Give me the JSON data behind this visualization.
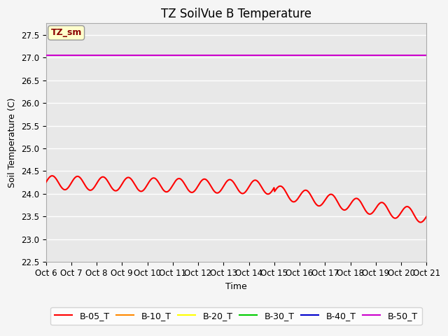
{
  "title": "TZ SoilVue B Temperature",
  "ylabel": "Soil Temperature (C)",
  "xlabel": "Time",
  "ylim": [
    22.5,
    27.75
  ],
  "yticks": [
    22.5,
    23.0,
    23.5,
    24.0,
    24.5,
    25.0,
    25.5,
    26.0,
    26.5,
    27.0,
    27.5
  ],
  "xtick_labels": [
    "Oct 6",
    "Oct 7",
    "Oct 8",
    "Oct 9",
    "Oct 10",
    "Oct 11",
    "Oct 12",
    "Oct 13",
    "Oct 14",
    "Oct 15",
    "Oct 16",
    "Oct 17",
    "Oct 18",
    "Oct 19",
    "Oct 20",
    "Oct 21"
  ],
  "annotation_text": "TZ_sm",
  "series": {
    "B-05_T": {
      "color": "#ff0000",
      "linewidth": 1.5
    },
    "B-10_T": {
      "color": "#ff8800",
      "linewidth": 1.5
    },
    "B-20_T": {
      "color": "#ffff00",
      "linewidth": 1.5
    },
    "B-30_T": {
      "color": "#00cc00",
      "linewidth": 1.5
    },
    "B-40_T": {
      "color": "#0000cc",
      "linewidth": 1.5
    },
    "B-50_T": {
      "color": "#cc00cc",
      "linewidth": 1.5
    }
  },
  "b50_value": 27.05,
  "background_color": "#e8e8e8",
  "grid_color": "#ffffff",
  "title_fontsize": 12,
  "axis_fontsize": 9,
  "tick_fontsize": 8.5,
  "legend_fontsize": 9
}
